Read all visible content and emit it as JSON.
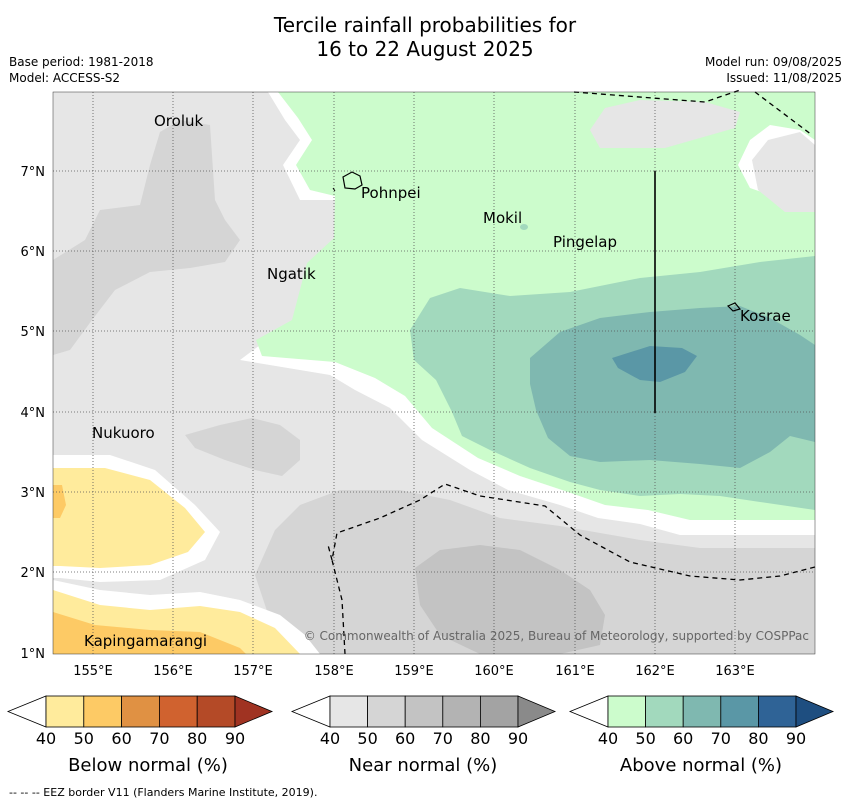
{
  "title_line1": "Tercile rainfall probabilities for",
  "title_line2": "16 to 22 August 2025",
  "meta": {
    "base_period": "Base period: 1981-2018",
    "model": "Model: ACCESS-S2",
    "model_run": "Model run: 09/08/2025",
    "issued": "Issued: 11/08/2025"
  },
  "map": {
    "lon_labels": [
      "155°E",
      "156°E",
      "157°E",
      "158°E",
      "159°E",
      "160°E",
      "161°E",
      "162°E",
      "163°E"
    ],
    "lat_labels": [
      "7°N",
      "6°N",
      "5°N",
      "4°N",
      "3°N",
      "2°N",
      "1°N"
    ],
    "places": [
      "Oroluk",
      "Pohnpei",
      "Mokil",
      "Pingelap",
      "Ngatik",
      "Kosrae",
      "Nukuoro",
      "Kapingamarangi"
    ],
    "copyright": "© Commonwealth of Australia 2025, Bureau of Meteorology, supported by COSPPac"
  },
  "colorbars": {
    "ticks": [
      "40",
      "50",
      "60",
      "70",
      "80",
      "90"
    ],
    "below": {
      "title": "Below normal (%)",
      "colors": [
        "#ffffff",
        "#ffeb9c",
        "#fdca65",
        "#e09143",
        "#d0622f",
        "#b44a27",
        "#a03322"
      ]
    },
    "near": {
      "title": "Near normal (%)",
      "colors": [
        "#ffffff",
        "#e6e6e6",
        "#d5d5d5",
        "#c3c3c3",
        "#b3b3b3",
        "#a3a3a3",
        "#8a8a8a"
      ]
    },
    "above": {
      "title": "Above normal (%)",
      "colors": [
        "#ffffff",
        "#ccfccc",
        "#a2d9bd",
        "#7fb8b0",
        "#5a97a6",
        "#2f6396",
        "#1e4e80"
      ]
    }
  },
  "footnote": "--  --  -- EEZ border V11 (Flanders Marine Institute, 2019)."
}
